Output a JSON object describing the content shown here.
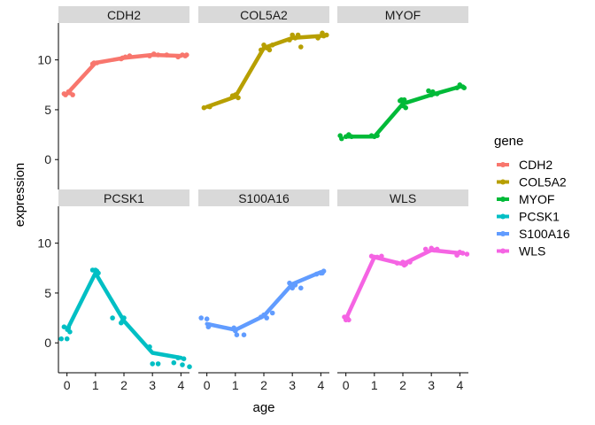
{
  "chart_data": {
    "type": "line",
    "xlabel": "age",
    "ylabel": "expression",
    "legend": {
      "title": "gene",
      "position": "right"
    },
    "x_ticks": [
      0,
      1,
      2,
      3,
      4
    ],
    "y_ticks": [
      0,
      5,
      10
    ],
    "xlim": [
      -0.3,
      4.3
    ],
    "ylim": [
      -3.0,
      13.7
    ],
    "grid": false,
    "series": [
      {
        "name": "CDH2",
        "color": "#F8766D",
        "line": [
          [
            0,
            6.6
          ],
          [
            1,
            9.7
          ],
          [
            2,
            10.2
          ],
          [
            3,
            10.5
          ],
          [
            4,
            10.4
          ]
        ],
        "points": [
          [
            -0.05,
            6.5
          ],
          [
            0.05,
            6.8
          ],
          [
            0.2,
            6.5
          ],
          [
            0.1,
            6.7
          ],
          [
            -0.1,
            6.6
          ],
          [
            0.95,
            9.7
          ],
          [
            1.05,
            9.7
          ],
          [
            0.9,
            9.6
          ],
          [
            1.9,
            10.1
          ],
          [
            2.05,
            10.3
          ],
          [
            2.2,
            10.4
          ],
          [
            1.95,
            10.2
          ],
          [
            2.9,
            10.4
          ],
          [
            3.05,
            10.6
          ],
          [
            3.2,
            10.5
          ],
          [
            3.5,
            10.5
          ],
          [
            3.9,
            10.3
          ],
          [
            4.05,
            10.5
          ],
          [
            4.15,
            10.4
          ],
          [
            4.2,
            10.5
          ]
        ]
      },
      {
        "name": "COL5A2",
        "color": "#B79F00",
        "line": [
          [
            0,
            5.3
          ],
          [
            1,
            6.3
          ],
          [
            2,
            11.2
          ],
          [
            3,
            12.2
          ],
          [
            4,
            12.4
          ]
        ],
        "points": [
          [
            -0.1,
            5.2
          ],
          [
            0.1,
            5.3
          ],
          [
            0.9,
            6.4
          ],
          [
            1.0,
            6.5
          ],
          [
            1.1,
            6.2
          ],
          [
            1.9,
            11.0
          ],
          [
            2.0,
            11.5
          ],
          [
            2.1,
            11.2
          ],
          [
            2.2,
            11.0
          ],
          [
            2.3,
            11.5
          ],
          [
            2.9,
            12.0
          ],
          [
            3.0,
            12.5
          ],
          [
            3.1,
            12.2
          ],
          [
            3.2,
            12.5
          ],
          [
            3.3,
            11.3
          ],
          [
            3.9,
            12.2
          ],
          [
            4.05,
            12.7
          ],
          [
            4.1,
            12.4
          ],
          [
            4.2,
            12.5
          ]
        ]
      },
      {
        "name": "MYOF",
        "color": "#00BA38",
        "line": [
          [
            0,
            2.3
          ],
          [
            1,
            2.3
          ],
          [
            2,
            5.6
          ],
          [
            3,
            6.5
          ],
          [
            4,
            7.3
          ]
        ],
        "points": [
          [
            -0.2,
            2.4
          ],
          [
            -0.15,
            2.1
          ],
          [
            0.0,
            2.3
          ],
          [
            0.1,
            2.5
          ],
          [
            0.2,
            2.3
          ],
          [
            0.9,
            2.4
          ],
          [
            1.0,
            2.3
          ],
          [
            1.1,
            2.4
          ],
          [
            1.9,
            5.9
          ],
          [
            1.95,
            6.0
          ],
          [
            2.0,
            5.4
          ],
          [
            2.05,
            6.0
          ],
          [
            2.1,
            5.2
          ],
          [
            2.9,
            6.9
          ],
          [
            3.0,
            6.5
          ],
          [
            3.05,
            6.8
          ],
          [
            3.2,
            6.6
          ],
          [
            3.9,
            7.2
          ],
          [
            4.0,
            7.5
          ],
          [
            4.1,
            7.3
          ],
          [
            4.15,
            7.2
          ]
        ]
      },
      {
        "name": "PCSK1",
        "color": "#00BFC4",
        "line": [
          [
            0,
            1.3
          ],
          [
            1,
            7.0
          ],
          [
            2,
            2.2
          ],
          [
            3,
            -1.0
          ],
          [
            4,
            -1.5
          ]
        ],
        "points": [
          [
            -0.2,
            0.4
          ],
          [
            -0.1,
            1.6
          ],
          [
            0.0,
            0.4
          ],
          [
            0.05,
            1.5
          ],
          [
            0.1,
            1.1
          ],
          [
            0.9,
            7.3
          ],
          [
            1.0,
            7.3
          ],
          [
            1.05,
            7.2
          ],
          [
            1.1,
            7.0
          ],
          [
            1.6,
            2.5
          ],
          [
            1.9,
            2.0
          ],
          [
            2.0,
            2.5
          ],
          [
            1.95,
            2.2
          ],
          [
            2.9,
            -0.4
          ],
          [
            3.0,
            -2.1
          ],
          [
            3.2,
            -2.1
          ],
          [
            3.75,
            -2.0
          ],
          [
            3.9,
            -1.5
          ],
          [
            4.05,
            -2.2
          ],
          [
            4.1,
            -1.6
          ],
          [
            4.3,
            -2.4
          ]
        ]
      },
      {
        "name": "S100A16",
        "color": "#619CFF",
        "line": [
          [
            0,
            1.9
          ],
          [
            1,
            1.3
          ],
          [
            2,
            2.7
          ],
          [
            3,
            5.9
          ],
          [
            4,
            7.1
          ]
        ],
        "points": [
          [
            -0.2,
            2.5
          ],
          [
            0.0,
            2.4
          ],
          [
            0.05,
            1.6
          ],
          [
            0.1,
            1.8
          ],
          [
            0.95,
            1.5
          ],
          [
            1.05,
            0.8
          ],
          [
            1.3,
            0.8
          ],
          [
            1.0,
            1.2
          ],
          [
            1.9,
            2.6
          ],
          [
            2.0,
            2.8
          ],
          [
            2.3,
            3.0
          ],
          [
            2.1,
            2.5
          ],
          [
            2.9,
            6.0
          ],
          [
            3.0,
            5.5
          ],
          [
            3.1,
            5.8
          ],
          [
            3.3,
            5.5
          ],
          [
            3.85,
            6.9
          ],
          [
            4.0,
            7.0
          ],
          [
            4.1,
            7.2
          ],
          [
            4.05,
            7.0
          ]
        ]
      },
      {
        "name": "WLS",
        "color": "#F564E3",
        "line": [
          [
            0,
            2.4
          ],
          [
            1,
            8.6
          ],
          [
            2,
            7.9
          ],
          [
            3,
            9.3
          ],
          [
            4,
            9.0
          ]
        ],
        "points": [
          [
            -0.05,
            2.6
          ],
          [
            0.0,
            2.3
          ],
          [
            0.1,
            2.3
          ],
          [
            0.05,
            2.5
          ],
          [
            0.9,
            8.7
          ],
          [
            1.0,
            8.6
          ],
          [
            1.1,
            8.6
          ],
          [
            1.25,
            8.7
          ],
          [
            1.8,
            8.0
          ],
          [
            2.0,
            8.1
          ],
          [
            2.05,
            7.8
          ],
          [
            2.1,
            7.9
          ],
          [
            2.25,
            8.1
          ],
          [
            2.8,
            9.4
          ],
          [
            3.0,
            9.5
          ],
          [
            3.1,
            9.3
          ],
          [
            3.2,
            9.4
          ],
          [
            3.9,
            8.8
          ],
          [
            4.0,
            9.1
          ],
          [
            4.1,
            9.0
          ],
          [
            4.25,
            8.9
          ]
        ]
      }
    ]
  }
}
